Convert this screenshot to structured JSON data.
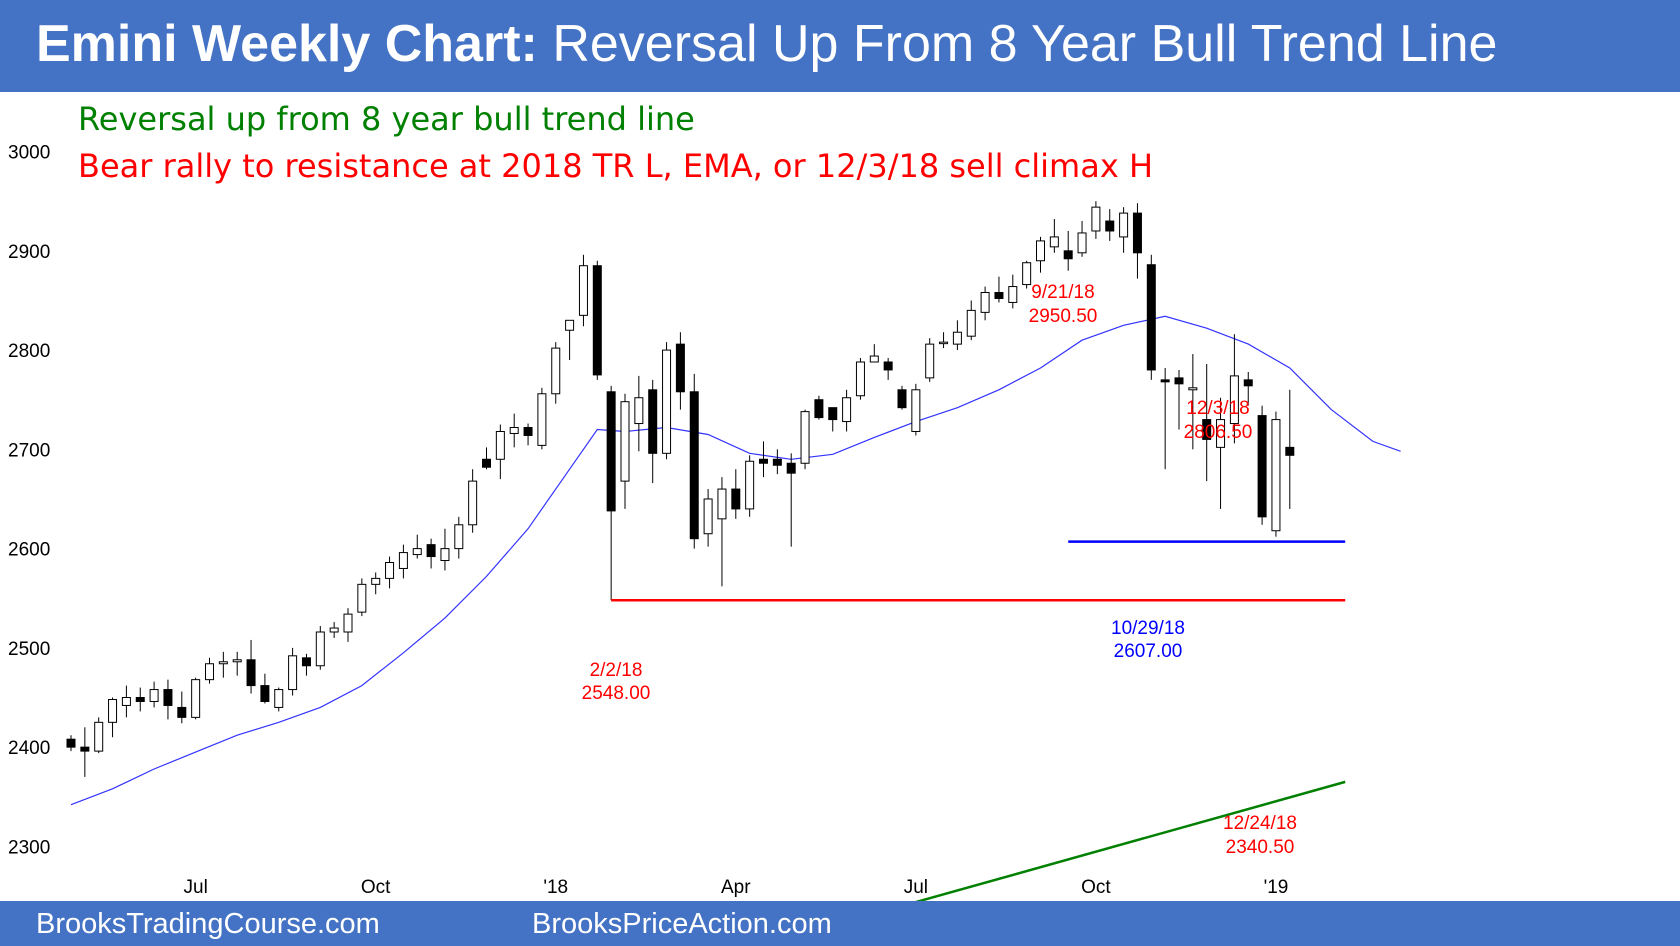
{
  "header": {
    "title_bold": "Emini Weekly Chart:",
    "title_rest": "Reversal Up From 8 Year Bull Trend Line",
    "bg": "#4472C4"
  },
  "notes": {
    "line1": "Reversal up from 8 year bull trend line",
    "line2": "Bear rally to resistance at 2018 TR L, EMA, or 12/3/18 sell climax H",
    "line1_color": "#008000",
    "line2_color": "#FF0000"
  },
  "footer": {
    "left": "BrooksTradingCourse.com",
    "right": "BrooksPriceAction.com"
  },
  "chart_data": {
    "type": "candlestick",
    "title": "Emini Weekly Chart",
    "xlabel": "",
    "ylabel": "",
    "ylim": [
      2245,
      3060
    ],
    "y_ticks": [
      2300,
      2400,
      2500,
      2600,
      2700,
      2800,
      2900,
      3000
    ],
    "x_ticks": [
      {
        "label": "Jul",
        "week": 9
      },
      {
        "label": "Oct",
        "week": 22
      },
      {
        "label": "'18",
        "week": 35
      },
      {
        "label": "Apr",
        "week": 48
      },
      {
        "label": "Jul",
        "week": 61
      },
      {
        "label": "Oct",
        "week": 74
      },
      {
        "label": "'19",
        "week": 87
      }
    ],
    "candles": [
      [
        2408,
        2412,
        2396,
        2400
      ],
      [
        2400,
        2420,
        2370,
        2396
      ],
      [
        2396,
        2430,
        2394,
        2425
      ],
      [
        2425,
        2450,
        2410,
        2448
      ],
      [
        2442,
        2462,
        2430,
        2450
      ],
      [
        2450,
        2460,
        2436,
        2446
      ],
      [
        2446,
        2466,
        2440,
        2458
      ],
      [
        2458,
        2468,
        2428,
        2442
      ],
      [
        2440,
        2456,
        2424,
        2430
      ],
      [
        2430,
        2470,
        2428,
        2468
      ],
      [
        2468,
        2490,
        2464,
        2484
      ],
      [
        2484,
        2496,
        2470,
        2486
      ],
      [
        2486,
        2496,
        2472,
        2488
      ],
      [
        2488,
        2508,
        2454,
        2462
      ],
      [
        2462,
        2474,
        2444,
        2446
      ],
      [
        2440,
        2460,
        2436,
        2458
      ],
      [
        2458,
        2500,
        2452,
        2492
      ],
      [
        2490,
        2494,
        2472,
        2482
      ],
      [
        2482,
        2522,
        2478,
        2516
      ],
      [
        2516,
        2526,
        2510,
        2520
      ],
      [
        2516,
        2540,
        2506,
        2534
      ],
      [
        2536,
        2570,
        2532,
        2564
      ],
      [
        2564,
        2576,
        2554,
        2570
      ],
      [
        2570,
        2592,
        2560,
        2586
      ],
      [
        2580,
        2604,
        2570,
        2596
      ],
      [
        2594,
        2614,
        2590,
        2600
      ],
      [
        2604,
        2610,
        2580,
        2592
      ],
      [
        2588,
        2620,
        2578,
        2600
      ],
      [
        2600,
        2632,
        2590,
        2624
      ],
      [
        2624,
        2680,
        2616,
        2668
      ],
      [
        2690,
        2702,
        2680,
        2682
      ],
      [
        2690,
        2725,
        2670,
        2718
      ],
      [
        2716,
        2736,
        2702,
        2722
      ],
      [
        2722,
        2726,
        2704,
        2714
      ],
      [
        2704,
        2762,
        2700,
        2756
      ],
      [
        2756,
        2808,
        2746,
        2802
      ],
      [
        2820,
        2830,
        2790,
        2830
      ],
      [
        2835,
        2896,
        2824,
        2885
      ],
      [
        2885,
        2890,
        2770,
        2775
      ],
      [
        2758,
        2764,
        2548,
        2638
      ],
      [
        2668,
        2756,
        2640,
        2748
      ],
      [
        2726,
        2774,
        2698,
        2752
      ],
      [
        2760,
        2770,
        2666,
        2696
      ],
      [
        2696,
        2808,
        2690,
        2800
      ],
      [
        2806,
        2818,
        2740,
        2758
      ],
      [
        2758,
        2776,
        2600,
        2610
      ],
      [
        2615,
        2660,
        2602,
        2650
      ],
      [
        2630,
        2672,
        2562,
        2660
      ],
      [
        2660,
        2680,
        2630,
        2640
      ],
      [
        2640,
        2694,
        2632,
        2688
      ],
      [
        2690,
        2708,
        2672,
        2686
      ],
      [
        2690,
        2700,
        2675,
        2684
      ],
      [
        2686,
        2696,
        2602,
        2676
      ],
      [
        2686,
        2740,
        2680,
        2738
      ],
      [
        2750,
        2754,
        2730,
        2732
      ],
      [
        2742,
        2742,
        2718,
        2730
      ],
      [
        2728,
        2760,
        2718,
        2752
      ],
      [
        2754,
        2792,
        2750,
        2788
      ],
      [
        2788,
        2806,
        2790,
        2794
      ],
      [
        2788,
        2792,
        2770,
        2780
      ],
      [
        2760,
        2764,
        2740,
        2742
      ],
      [
        2718,
        2766,
        2714,
        2760
      ],
      [
        2772,
        2812,
        2768,
        2806
      ],
      [
        2808,
        2818,
        2802,
        2808
      ],
      [
        2806,
        2830,
        2800,
        2818
      ],
      [
        2814,
        2850,
        2810,
        2840
      ],
      [
        2838,
        2864,
        2830,
        2858
      ],
      [
        2858,
        2874,
        2848,
        2852
      ],
      [
        2848,
        2876,
        2842,
        2864
      ],
      [
        2866,
        2890,
        2862,
        2888
      ],
      [
        2890,
        2914,
        2878,
        2910
      ],
      [
        2904,
        2932,
        2898,
        2914
      ],
      [
        2900,
        2920,
        2880,
        2892
      ],
      [
        2898,
        2930,
        2894,
        2918
      ],
      [
        2920,
        2950,
        2912,
        2944
      ],
      [
        2930,
        2942,
        2910,
        2920
      ],
      [
        2914,
        2944,
        2898,
        2938
      ],
      [
        2938,
        2948,
        2872,
        2898
      ],
      [
        2886,
        2896,
        2770,
        2780
      ],
      [
        2770,
        2782,
        2680,
        2768
      ],
      [
        2772,
        2780,
        2720,
        2766
      ],
      [
        2760,
        2796,
        2700,
        2762
      ],
      [
        2730,
        2786,
        2668,
        2710
      ],
      [
        2702,
        2752,
        2640,
        2730
      ],
      [
        2726,
        2816,
        2706,
        2774
      ],
      [
        2770,
        2778,
        2744,
        2764
      ],
      [
        2734,
        2744,
        2624,
        2632
      ],
      [
        2618,
        2738,
        2612,
        2730
      ],
      [
        2702,
        2760,
        2640,
        2694
      ]
    ],
    "ema_points": [
      [
        0,
        2342
      ],
      [
        3,
        2358
      ],
      [
        6,
        2378
      ],
      [
        9,
        2395
      ],
      [
        12,
        2412
      ],
      [
        15,
        2425
      ],
      [
        18,
        2440
      ],
      [
        21,
        2462
      ],
      [
        24,
        2495
      ],
      [
        27,
        2530
      ],
      [
        30,
        2572
      ],
      [
        33,
        2620
      ],
      [
        36,
        2680
      ],
      [
        38,
        2720
      ],
      [
        40,
        2718
      ],
      [
        43,
        2722
      ],
      [
        46,
        2715
      ],
      [
        49,
        2696
      ],
      [
        52,
        2690
      ],
      [
        55,
        2695
      ],
      [
        58,
        2712
      ],
      [
        61,
        2728
      ],
      [
        64,
        2742
      ],
      [
        67,
        2760
      ],
      [
        70,
        2782
      ],
      [
        73,
        2810
      ],
      [
        76,
        2825
      ],
      [
        79,
        2834
      ],
      [
        82,
        2822
      ],
      [
        85,
        2806
      ],
      [
        88,
        2782
      ],
      [
        91,
        2740
      ],
      [
        94,
        2708
      ],
      [
        96,
        2698
      ]
    ],
    "ema_note": "line: 20-week moving average",
    "levels": [
      {
        "name": "2018 trading range low",
        "value": 2548.0,
        "date": "2/2/18",
        "color": "#FF0000"
      },
      {
        "name": "10/29/18 low",
        "value": 2607.0,
        "date": "10/29/18",
        "color": "#0000FF"
      }
    ],
    "trend_line": {
      "color": "#008000",
      "from": [
        60,
        2240
      ],
      "to": [
        92,
        2365
      ]
    },
    "annotations": [
      {
        "date": "9/21/18",
        "value": "2950.50",
        "color": "#FF0000"
      },
      {
        "date": "12/3/18",
        "value": "2806.50",
        "color": "#FF0000"
      },
      {
        "date": "2/2/18",
        "value": "2548.00",
        "color": "#FF0000"
      },
      {
        "date": "10/29/18",
        "value": "2607.00",
        "color": "#0000FF"
      },
      {
        "date": "12/24/18",
        "value": "2340.50",
        "color": "#FF0000"
      }
    ]
  }
}
